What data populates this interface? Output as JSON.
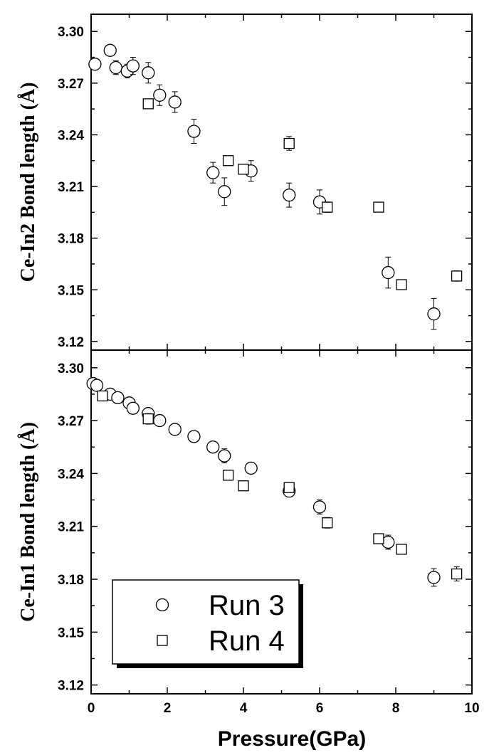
{
  "chart_data": {
    "type": "scatter",
    "xlabel": "Pressure(GPa)",
    "xlim": [
      0,
      10
    ],
    "x_ticks": [
      0,
      2,
      4,
      6,
      8,
      10
    ],
    "legend": {
      "placement": "bottom-left",
      "entries": [
        {
          "label": "Run 3",
          "marker": "circle"
        },
        {
          "label": "Run 4",
          "marker": "square"
        }
      ]
    },
    "panels": [
      {
        "id": "top",
        "ylabel": "Ce-In2 Bond length (Å)",
        "ylim": [
          3.115,
          3.31
        ],
        "y_ticks": [
          3.12,
          3.15,
          3.18,
          3.21,
          3.24,
          3.27,
          3.3
        ],
        "series": [
          {
            "name": "Run 3",
            "marker": "circle",
            "points": [
              {
                "x": 0.1,
                "y": 3.281,
                "err": 0.003
              },
              {
                "x": 0.5,
                "y": 3.289,
                "err": 0.003
              },
              {
                "x": 0.65,
                "y": 3.279,
                "err": 0.004
              },
              {
                "x": 0.95,
                "y": 3.277,
                "err": 0.004
              },
              {
                "x": 1.1,
                "y": 3.28,
                "err": 0.005
              },
              {
                "x": 1.5,
                "y": 3.276,
                "err": 0.006
              },
              {
                "x": 1.8,
                "y": 3.263,
                "err": 0.006
              },
              {
                "x": 2.2,
                "y": 3.259,
                "err": 0.006
              },
              {
                "x": 2.7,
                "y": 3.242,
                "err": 0.007
              },
              {
                "x": 3.2,
                "y": 3.218,
                "err": 0.006
              },
              {
                "x": 3.5,
                "y": 3.207,
                "err": 0.008
              },
              {
                "x": 4.2,
                "y": 3.219,
                "err": 0.006
              },
              {
                "x": 5.2,
                "y": 3.205,
                "err": 0.007
              },
              {
                "x": 6.0,
                "y": 3.201,
                "err": 0.007
              },
              {
                "x": 7.8,
                "y": 3.16,
                "err": 0.009
              },
              {
                "x": 9.0,
                "y": 3.136,
                "err": 0.009
              }
            ]
          },
          {
            "name": "Run 4",
            "marker": "square",
            "points": [
              {
                "x": 1.5,
                "y": 3.258,
                "err": 0.001
              },
              {
                "x": 3.6,
                "y": 3.225,
                "err": 0.002
              },
              {
                "x": 4.0,
                "y": 3.22,
                "err": 0.001
              },
              {
                "x": 5.2,
                "y": 3.235,
                "err": 0.004
              },
              {
                "x": 6.2,
                "y": 3.198,
                "err": 0.003
              },
              {
                "x": 7.55,
                "y": 3.198,
                "err": 0.001
              },
              {
                "x": 8.15,
                "y": 3.153,
                "err": 0.002
              },
              {
                "x": 9.6,
                "y": 3.158,
                "err": 0.003
              }
            ]
          }
        ]
      },
      {
        "id": "bottom",
        "ylabel": "Ce-In1 Bond length (Å)",
        "ylim": [
          3.115,
          3.31
        ],
        "y_ticks": [
          3.12,
          3.15,
          3.18,
          3.21,
          3.24,
          3.27,
          3.3
        ],
        "series": [
          {
            "name": "Run 3",
            "marker": "circle",
            "points": [
              {
                "x": 0.05,
                "y": 3.291,
                "err": 0.002
              },
              {
                "x": 0.15,
                "y": 3.29,
                "err": 0.002
              },
              {
                "x": 0.5,
                "y": 3.285,
                "err": 0.002
              },
              {
                "x": 0.7,
                "y": 3.283,
                "err": 0.002
              },
              {
                "x": 1.0,
                "y": 3.28,
                "err": 0.002
              },
              {
                "x": 1.1,
                "y": 3.277,
                "err": 0.003
              },
              {
                "x": 1.5,
                "y": 3.274,
                "err": 0.003
              },
              {
                "x": 1.8,
                "y": 3.27,
                "err": 0.003
              },
              {
                "x": 2.2,
                "y": 3.265,
                "err": 0.003
              },
              {
                "x": 2.7,
                "y": 3.261,
                "err": 0.002
              },
              {
                "x": 3.2,
                "y": 3.255,
                "err": 0.003
              },
              {
                "x": 3.5,
                "y": 3.25,
                "err": 0.004
              },
              {
                "x": 4.2,
                "y": 3.243,
                "err": 0.002
              },
              {
                "x": 5.2,
                "y": 3.23,
                "err": 0.003
              },
              {
                "x": 6.0,
                "y": 3.221,
                "err": 0.004
              },
              {
                "x": 7.8,
                "y": 3.201,
                "err": 0.004
              },
              {
                "x": 9.0,
                "y": 3.181,
                "err": 0.005
              }
            ]
          },
          {
            "name": "Run 4",
            "marker": "square",
            "points": [
              {
                "x": 0.3,
                "y": 3.284,
                "err": 0.002
              },
              {
                "x": 1.5,
                "y": 3.271,
                "err": 0.003
              },
              {
                "x": 3.6,
                "y": 3.239,
                "err": 0.002
              },
              {
                "x": 4.0,
                "y": 3.233,
                "err": 0.001
              },
              {
                "x": 5.2,
                "y": 3.232,
                "err": 0.002
              },
              {
                "x": 6.2,
                "y": 3.212,
                "err": 0.003
              },
              {
                "x": 7.55,
                "y": 3.203,
                "err": 0.002
              },
              {
                "x": 8.15,
                "y": 3.197,
                "err": 0.002
              },
              {
                "x": 9.6,
                "y": 3.183,
                "err": 0.004
              }
            ]
          }
        ]
      }
    ]
  }
}
